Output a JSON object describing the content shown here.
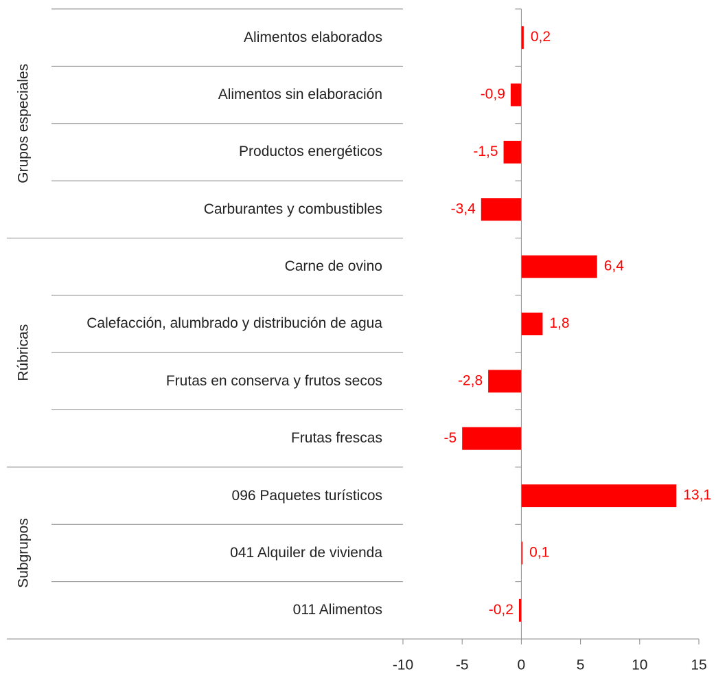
{
  "chart_data": {
    "type": "bar",
    "orientation": "horizontal",
    "color": "#ff0000",
    "groups": [
      {
        "name": "Grupos especiales",
        "categories": [
          "Alimentos elaborados",
          "Alimentos sin elaboración",
          "Productos energéticos",
          "Carburantes y combustibles"
        ],
        "values": [
          0.2,
          -0.9,
          -1.5,
          -3.4
        ],
        "value_labels": [
          "0,2",
          "-0,9",
          "-1,5",
          "-3,4"
        ]
      },
      {
        "name": "Rúbricas",
        "categories": [
          "Carne de ovino",
          "Calefacción, alumbrado y distribución de agua",
          "Frutas en conserva y frutos secos",
          "Frutas frescas"
        ],
        "values": [
          6.4,
          1.8,
          -2.8,
          -5
        ],
        "value_labels": [
          "6,4",
          "1,8",
          "-2,8",
          "-5"
        ]
      },
      {
        "name": "Subgrupos",
        "categories": [
          "096 Paquetes turísticos",
          "041 Alquiler de vivienda",
          "011 Alimentos"
        ],
        "values": [
          13.1,
          0.1,
          -0.2
        ],
        "value_labels": [
          "13,1",
          "0,1",
          "-0,2"
        ]
      }
    ],
    "xlim": [
      -10,
      15
    ],
    "xticks": [
      -10,
      -5,
      0,
      5,
      10,
      15
    ]
  }
}
